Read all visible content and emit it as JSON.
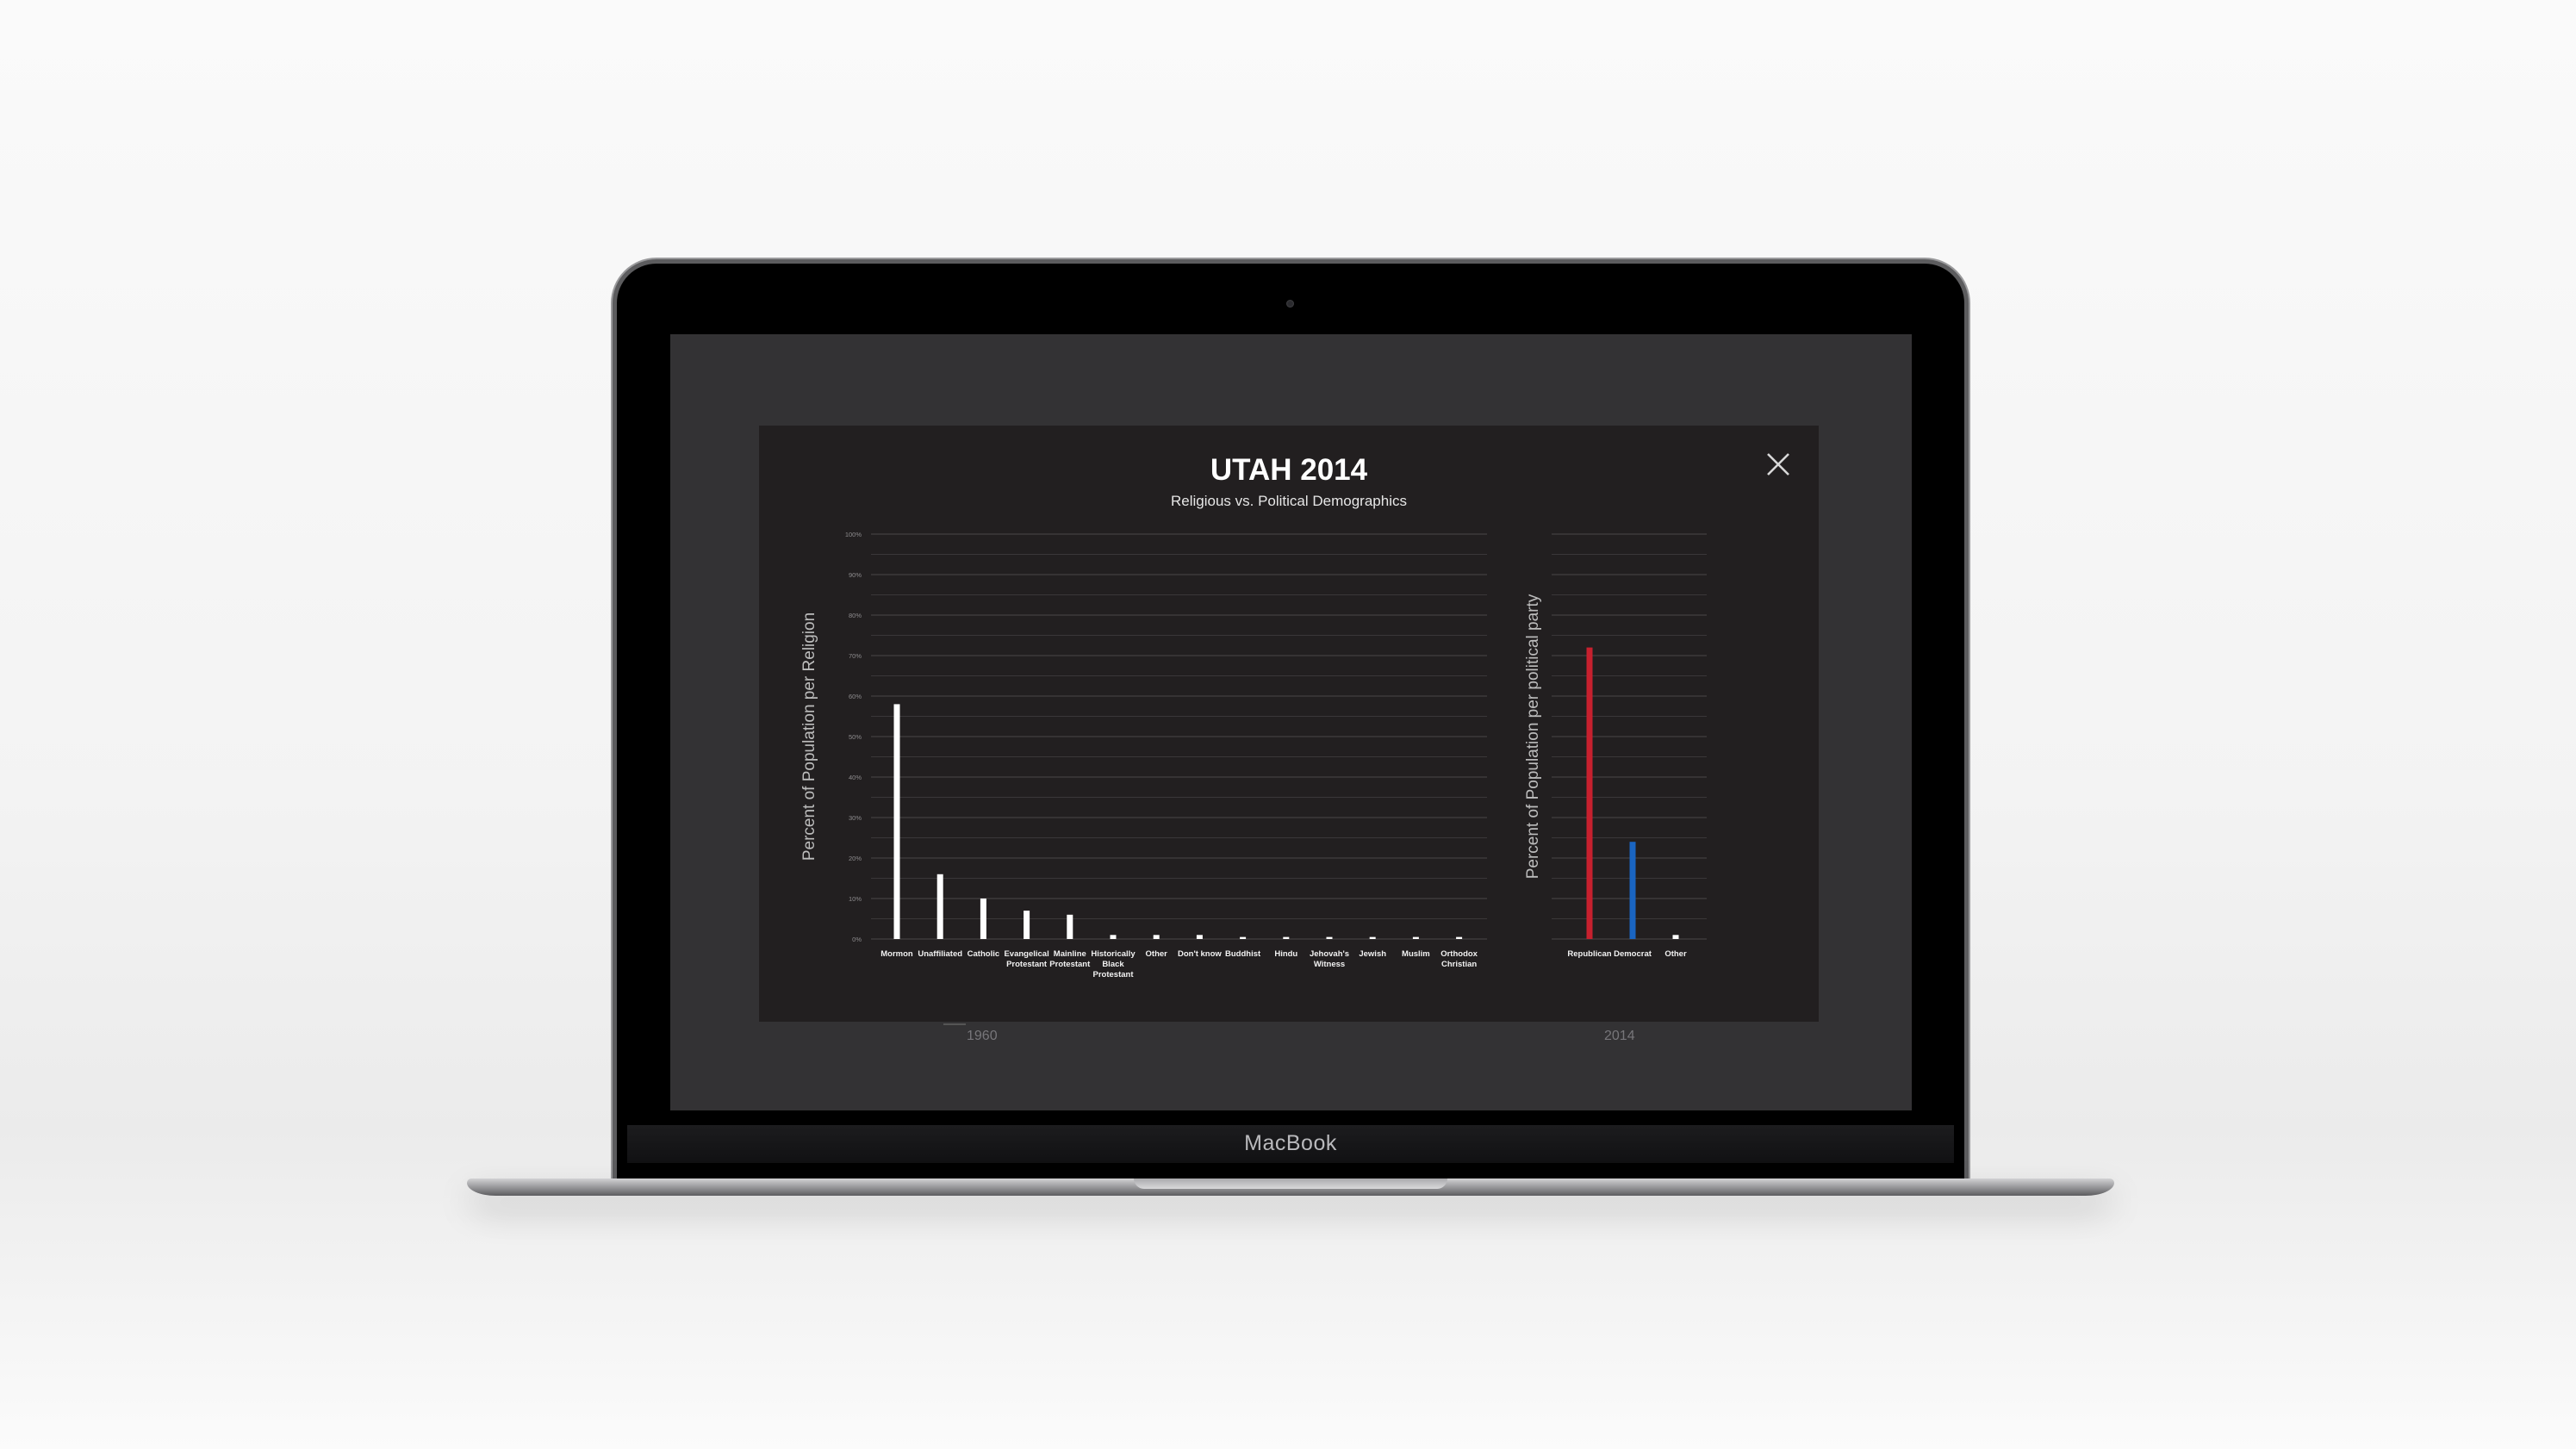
{
  "device": {
    "brand": "MacBook"
  },
  "background_timeline": {
    "left_year": "1960",
    "right_year": "2014"
  },
  "modal": {
    "title": "UTAH 2014",
    "subtitle": "Religious vs. Political Demographics",
    "close_icon": "close-icon"
  },
  "colors": {
    "modal_bg": "#221f20",
    "bar_religion": "#ffffff",
    "republican": "#c7202e",
    "democrat": "#1a65c2",
    "other": "#ffffff"
  },
  "chart_data": [
    {
      "type": "bar",
      "ylabel": "Percent of Population per Religion",
      "xlabel": "",
      "ylim": [
        0,
        100
      ],
      "ytick_labels": [
        "0%",
        "10%",
        "20%",
        "30%",
        "40%",
        "50%",
        "60%",
        "70%",
        "80%",
        "90%",
        "100%"
      ],
      "grid": true,
      "categories": [
        "Mormon",
        "Unaffiliated",
        "Catholic",
        "Evangelical Protestant",
        "Mainline Protestant",
        "Historically Black Protestant",
        "Other",
        "Don't know",
        "Buddhist",
        "Hindu",
        "Jehovah's Witness",
        "Jewish",
        "Muslim",
        "Orthodox Christian"
      ],
      "category_lines": [
        [
          "Mormon"
        ],
        [
          "Unaffiliated"
        ],
        [
          "Catholic"
        ],
        [
          "Evangelical",
          "Protestant"
        ],
        [
          "Mainline",
          "Protestant"
        ],
        [
          "Historically",
          "Black",
          "Protestant"
        ],
        [
          "Other"
        ],
        [
          "Don't know"
        ],
        [
          "Buddhist"
        ],
        [
          "Hindu"
        ],
        [
          "Jehovah's",
          "Witness"
        ],
        [
          "Jewish"
        ],
        [
          "Muslim"
        ],
        [
          "Orthodox",
          "Christian"
        ]
      ],
      "values": [
        58,
        16,
        10,
        7,
        6,
        1,
        1,
        1,
        0.5,
        0.5,
        0.5,
        0.5,
        0.5,
        0.5
      ]
    },
    {
      "type": "bar",
      "ylabel": "Percent of Population per political party",
      "xlabel": "",
      "ylim": [
        0,
        100
      ],
      "grid": true,
      "categories": [
        "Republican",
        "Democrat",
        "Other"
      ],
      "values": [
        72,
        24,
        1
      ]
    }
  ]
}
